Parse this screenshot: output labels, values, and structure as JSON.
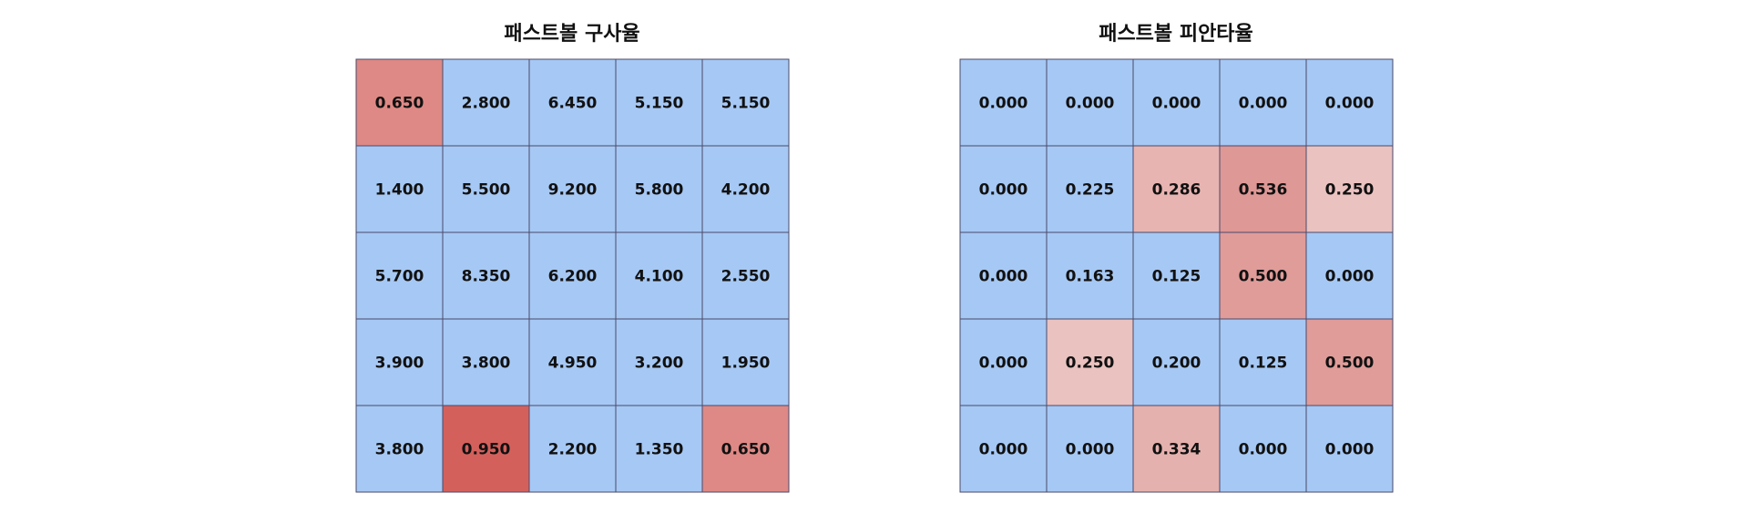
{
  "colors": {
    "cool": "#a6c8f4",
    "warm": "#d4605c",
    "grid": "#4a4a6a",
    "text": "#111111"
  },
  "chart_data": [
    {
      "type": "heatmap",
      "title": "패스트볼 구사율",
      "rows": 5,
      "cols": 5,
      "values": [
        [
          0.65,
          2.8,
          6.45,
          5.15,
          5.15
        ],
        [
          1.4,
          5.5,
          9.2,
          5.8,
          4.2
        ],
        [
          5.7,
          8.35,
          6.2,
          4.1,
          2.55
        ],
        [
          3.9,
          3.8,
          4.95,
          3.2,
          1.95
        ],
        [
          3.8,
          0.95,
          2.2,
          1.35,
          0.65
        ]
      ],
      "labels": [
        [
          "0.650",
          "2.800",
          "6.450",
          "5.150",
          "5.150"
        ],
        [
          "1.400",
          "5.500",
          "9.200",
          "5.800",
          "4.200"
        ],
        [
          "5.700",
          "8.350",
          "6.200",
          "4.100",
          "2.550"
        ],
        [
          "3.900",
          "3.800",
          "4.950",
          "3.200",
          "1.950"
        ],
        [
          "3.800",
          "0.950",
          "2.200",
          "1.350",
          "0.650"
        ]
      ],
      "cell_colors": [
        [
          "#de8985",
          "#a6c8f4",
          "#a6c8f4",
          "#a6c8f4",
          "#a6c8f4"
        ],
        [
          "#a6c8f4",
          "#a6c8f4",
          "#a6c8f4",
          "#a6c8f4",
          "#a6c8f4"
        ],
        [
          "#a6c8f4",
          "#a6c8f4",
          "#a6c8f4",
          "#a6c8f4",
          "#a6c8f4"
        ],
        [
          "#a6c8f4",
          "#a6c8f4",
          "#a6c8f4",
          "#a6c8f4",
          "#a6c8f4"
        ],
        [
          "#a6c8f4",
          "#d4605c",
          "#a6c8f4",
          "#a6c8f4",
          "#de8985"
        ]
      ]
    },
    {
      "type": "heatmap",
      "title": "패스트볼 피안타율",
      "rows": 5,
      "cols": 5,
      "values": [
        [
          0.0,
          0.0,
          0.0,
          0.0,
          0.0
        ],
        [
          0.0,
          0.225,
          0.286,
          0.536,
          0.25
        ],
        [
          0.0,
          0.163,
          0.125,
          0.5,
          0.0
        ],
        [
          0.0,
          0.25,
          0.2,
          0.125,
          0.5
        ],
        [
          0.0,
          0.0,
          0.334,
          0.0,
          0.0
        ]
      ],
      "labels": [
        [
          "0.000",
          "0.000",
          "0.000",
          "0.000",
          "0.000"
        ],
        [
          "0.000",
          "0.225",
          "0.286",
          "0.536",
          "0.250"
        ],
        [
          "0.000",
          "0.163",
          "0.125",
          "0.500",
          "0.000"
        ],
        [
          "0.000",
          "0.250",
          "0.200",
          "0.125",
          "0.500"
        ],
        [
          "0.000",
          "0.000",
          "0.334",
          "0.000",
          "0.000"
        ]
      ],
      "cell_colors": [
        [
          "#a6c8f4",
          "#a6c8f4",
          "#a6c8f4",
          "#a6c8f4",
          "#a6c8f4"
        ],
        [
          "#a6c8f4",
          "#a6c8f4",
          "#e8b4b2",
          "#de9896",
          "#eac2c0"
        ],
        [
          "#a6c8f4",
          "#a6c8f4",
          "#a6c8f4",
          "#e09c99",
          "#a6c8f4"
        ],
        [
          "#a6c8f4",
          "#eac2c0",
          "#a6c8f4",
          "#a6c8f4",
          "#e09c99"
        ],
        [
          "#a6c8f4",
          "#a6c8f4",
          "#e5b1ae",
          "#a6c8f4",
          "#a6c8f4"
        ]
      ]
    }
  ]
}
